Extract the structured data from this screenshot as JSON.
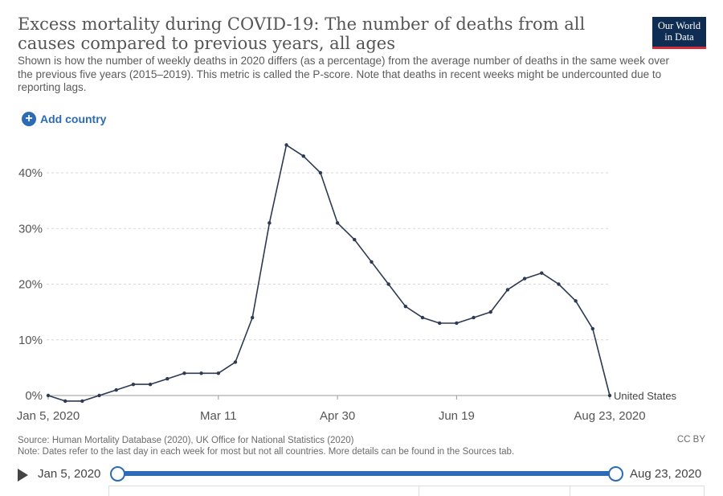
{
  "header": {
    "title": "Excess mortality during COVID-19: The number of deaths from all causes compared to previous years, all ages",
    "subtitle": "Shown is how the number of weekly deaths in 2020 differs (as a percentage) from the average number of deaths in the same week over the previous five years (2015–2019). This metric is called the P-score. Note that deaths in recent weeks might be undercounted due to reporting lags.",
    "logo_line1": "Our World",
    "logo_line2": "in Data"
  },
  "controls": {
    "add_country_label": "Add country",
    "plus_symbol": "+"
  },
  "chart_data": {
    "type": "line",
    "title": "Excess mortality during COVID-19",
    "xlabel": "",
    "ylabel": "",
    "ylim": [
      0,
      46
    ],
    "y_ticks": [
      0,
      10,
      20,
      30,
      40
    ],
    "y_tick_labels": [
      "0%",
      "10%",
      "20%",
      "30%",
      "40%"
    ],
    "x_tick_labels": [
      "Jan 5, 2020",
      "Mar 11",
      "Apr 30",
      "Jun 19",
      "Aug 23, 2020"
    ],
    "x_tick_weeks": [
      0,
      10,
      17,
      24,
      33
    ],
    "grid": true,
    "series": [
      {
        "name": "United States",
        "color": "#2d3a52",
        "weeks": [
          0,
          1,
          2,
          3,
          4,
          5,
          6,
          7,
          8,
          9,
          10,
          11,
          12,
          13,
          14,
          15,
          16,
          17,
          18,
          19,
          20,
          21,
          22,
          23,
          24,
          25,
          26,
          27,
          28,
          29,
          30,
          31,
          32,
          33
        ],
        "values": [
          0,
          -1,
          -1,
          0,
          1,
          2,
          2,
          3,
          4,
          4,
          4,
          6,
          14,
          31,
          45,
          43,
          40,
          31,
          28,
          24,
          20,
          16,
          14,
          13,
          13,
          14,
          15,
          19,
          21,
          22,
          20,
          17,
          12,
          0
        ]
      }
    ]
  },
  "footer": {
    "source": "Source: Human Mortality Database (2020), UK Office for National Statistics (2020)",
    "note": "Note: Dates refer to the last day in each week for most but not all countries. More details can be found in the Sources tab.",
    "license": "CC BY"
  },
  "timeline": {
    "start_label": "Jan 5, 2020",
    "end_label": "Aug 23, 2020"
  }
}
